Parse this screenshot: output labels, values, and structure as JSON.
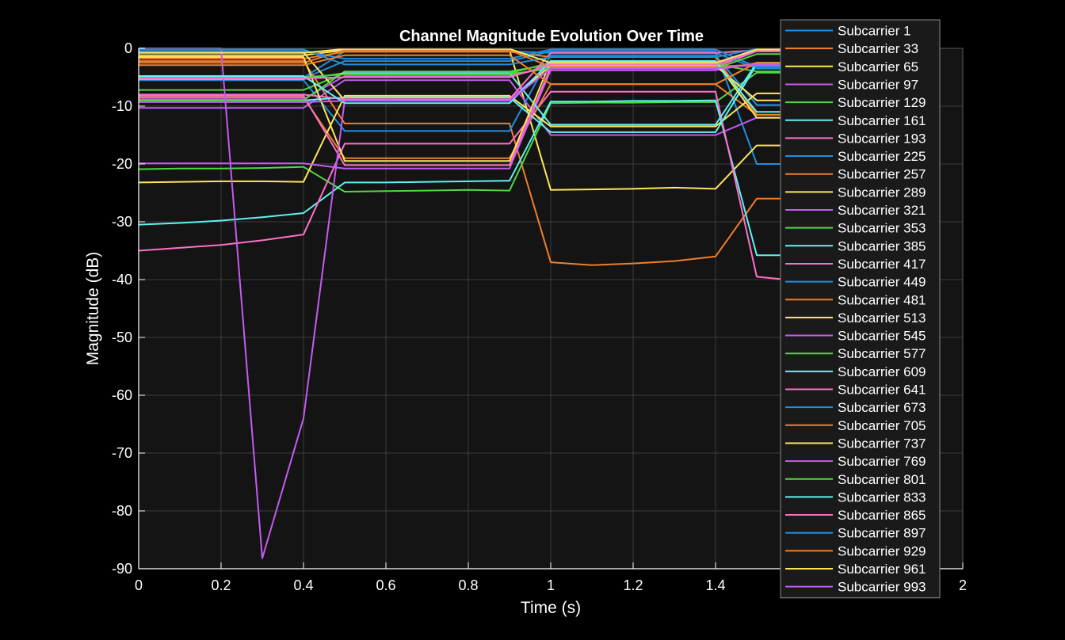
{
  "chart_data": {
    "type": "line",
    "title": "Channel Magnitude Evolution Over Time",
    "xlabel": "Time (s)",
    "ylabel": "Magnitude (dB)",
    "xlim": [
      0,
      2
    ],
    "ylim": [
      -90,
      0
    ],
    "xticks": [
      0,
      0.2,
      0.4,
      0.6,
      0.8,
      1,
      1.2,
      1.4,
      1.6,
      1.8,
      2
    ],
    "xtick_labels": [
      "0",
      "0.2",
      "0.4",
      "0.6",
      "0.8",
      "1",
      "1.2",
      "1.4",
      "",
      "",
      "2"
    ],
    "yticks": [
      0,
      -10,
      -20,
      -30,
      -40,
      -50,
      -60,
      -70,
      -80,
      -90
    ],
    "ytick_labels": [
      "0",
      "-10",
      "-20",
      "-30",
      "-40",
      "-50",
      "-60",
      "-70",
      "-80",
      "-90"
    ],
    "grid": true,
    "legend_position": "top-right",
    "background": "#141414",
    "x": [
      0,
      0.1,
      0.2,
      0.3,
      0.4,
      0.5,
      0.6,
      0.7,
      0.8,
      0.9,
      1.0,
      1.1,
      1.2,
      1.3,
      1.4,
      1.5,
      1.6
    ],
    "series": [
      {
        "name": "Subcarrier 1",
        "color": "#1f8ee0",
        "values": [
          -5.2,
          -5.2,
          -5.2,
          -5.2,
          -5.2,
          -2.2,
          -2.2,
          -2.2,
          -2.2,
          -2.2,
          -0.5,
          -0.5,
          -0.5,
          -0.5,
          -0.5,
          -20,
          -20
        ]
      },
      {
        "name": "Subcarrier 33",
        "color": "#f07f2a",
        "values": [
          -2.2,
          -2.2,
          -2.2,
          -2.2,
          -2.2,
          -13,
          -13,
          -13,
          -13,
          -13,
          -37,
          -37.5,
          -37.2,
          -36.8,
          -36,
          -26,
          -26
        ]
      },
      {
        "name": "Subcarrier 65",
        "color": "#ffe55c",
        "values": [
          -1.2,
          -1.2,
          -1.2,
          -1.2,
          -1.2,
          -0.3,
          -0.3,
          -0.3,
          -0.3,
          -0.3,
          -24.5,
          -24.4,
          -24.3,
          -24.1,
          -24.3,
          -16.8,
          -16.8
        ]
      },
      {
        "name": "Subcarrier 97",
        "color": "#c45cf0",
        "values": [
          -10.3,
          -10.3,
          -10.3,
          -10.3,
          -10.3,
          -5.5,
          -5.5,
          -5.5,
          -5.5,
          -5.5,
          -15,
          -15,
          -15,
          -15,
          -15,
          -12,
          -12
        ]
      },
      {
        "name": "Subcarrier 129",
        "color": "#4ed83f",
        "values": [
          -20.9,
          -20.8,
          -20.8,
          -20.7,
          -20.5,
          -24.8,
          -24.7,
          -24.6,
          -24.5,
          -24.6,
          -9.5,
          -9.4,
          -9.4,
          -9.3,
          -9.3,
          -4.2,
          -4.2
        ]
      },
      {
        "name": "Subcarrier 161",
        "color": "#5ff2f2",
        "values": [
          -30.5,
          -30.2,
          -29.8,
          -29.2,
          -28.5,
          -23.2,
          -23.2,
          -23.1,
          -23.0,
          -22.9,
          -9.2,
          -9.2,
          -9.1,
          -9.1,
          -9.0,
          -35.8,
          -35.8
        ]
      },
      {
        "name": "Subcarrier 193",
        "color": "#ff6fc8",
        "values": [
          -35,
          -34.5,
          -34,
          -33.2,
          -32.2,
          -16.5,
          -16.5,
          -16.5,
          -16.5,
          -16.5,
          -7.5,
          -7.5,
          -7.5,
          -7.5,
          -7.5,
          -39.5,
          -40.2
        ]
      },
      {
        "name": "Subcarrier 225",
        "color": "#1f8ee0",
        "values": [
          -5.5,
          -5.5,
          -5.5,
          -5.5,
          -5.5,
          -14.3,
          -14.3,
          -14.3,
          -14.3,
          -14.3,
          -1.2,
          -1.2,
          -1.2,
          -1.2,
          -1.2,
          -9.8,
          -9.8
        ]
      },
      {
        "name": "Subcarrier 257",
        "color": "#f07f2a",
        "values": [
          -8.5,
          -8.5,
          -8.5,
          -8.5,
          -8.5,
          -19,
          -19,
          -19,
          -19,
          -19,
          -6.2,
          -6.2,
          -6.2,
          -6.2,
          -6.2,
          -11.5,
          -11.5
        ]
      },
      {
        "name": "Subcarrier 289",
        "color": "#ffe55c",
        "values": [
          -23.2,
          -23.1,
          -23.0,
          -23.0,
          -23.1,
          -8.2,
          -8.2,
          -8.2,
          -8.2,
          -8.2,
          -13.5,
          -13.5,
          -13.5,
          -13.5,
          -13.5,
          -7.8,
          -7.8
        ]
      },
      {
        "name": "Subcarrier 321",
        "color": "#c45cf0",
        "values": [
          -19.9,
          -19.9,
          -19.9,
          -19.9,
          -19.9,
          -20.8,
          -20.8,
          -20.8,
          -20.8,
          -20.8,
          -3.8,
          -3.8,
          -3.8,
          -3.8,
          -3.8,
          -2.5,
          -2.5
        ]
      },
      {
        "name": "Subcarrier 353",
        "color": "#4ed83f",
        "values": [
          -7.2,
          -7.2,
          -7.2,
          -7.2,
          -7.2,
          -4.3,
          -4.3,
          -4.3,
          -4.3,
          -4.3,
          -2.5,
          -2.5,
          -2.5,
          -2.5,
          -2.5,
          -0.3,
          -0.3
        ]
      },
      {
        "name": "Subcarrier 385",
        "color": "#5ff2f2",
        "values": [
          -9,
          -9,
          -9,
          -9,
          -9,
          -8.5,
          -8.5,
          -8.5,
          -8.5,
          -8.5,
          -14.5,
          -14.5,
          -14.5,
          -14.5,
          -14.5,
          -2.8,
          -2.8
        ]
      },
      {
        "name": "Subcarrier 417",
        "color": "#ff6fc8",
        "values": [
          -8.2,
          -8.2,
          -8.2,
          -8.2,
          -8.2,
          -20.2,
          -20.2,
          -20.2,
          -20.2,
          -20.2,
          -3.2,
          -3.2,
          -3.2,
          -3.2,
          -3.2,
          -0.5,
          -0.5
        ]
      },
      {
        "name": "Subcarrier 449",
        "color": "#1f8ee0",
        "values": [
          -5.1,
          -5.1,
          -5.1,
          -5.1,
          -5.1,
          -0.5,
          -0.5,
          -0.5,
          -0.5,
          -0.5,
          -0.8,
          -0.8,
          -0.8,
          -0.8,
          -0.8,
          -3.5,
          -3.5
        ]
      },
      {
        "name": "Subcarrier 481",
        "color": "#f07f2a",
        "values": [
          -1.8,
          -1.8,
          -1.8,
          -1.8,
          -1.8,
          -0.6,
          -0.6,
          -0.6,
          -0.6,
          -0.6,
          -1.5,
          -1.5,
          -1.5,
          -1.5,
          -1.5,
          -11.5,
          -11.5
        ]
      },
      {
        "name": "Subcarrier 513",
        "color": "#ffe55c",
        "values": [
          -0.7,
          -0.7,
          -0.7,
          -0.7,
          -0.7,
          -9,
          -9,
          -9,
          -9,
          -9,
          -3,
          -3,
          -3,
          -3,
          -3,
          -9,
          -9
        ]
      },
      {
        "name": "Subcarrier 545",
        "color": "#c45cf0",
        "values": [
          -8.8,
          -8.8,
          -8.8,
          -8.8,
          -8.8,
          -4.8,
          -4.8,
          -4.8,
          -4.8,
          -4.8,
          -3.2,
          -3.2,
          -3.2,
          -3.2,
          -3.2,
          -3,
          -3
        ]
      },
      {
        "name": "Subcarrier 577",
        "color": "#4ed83f",
        "values": [
          -9,
          -9,
          -9,
          -9,
          -9,
          -4,
          -4,
          -4,
          -4,
          -4,
          -2.8,
          -2.8,
          -2.8,
          -2.8,
          -2.8,
          -4,
          -4
        ]
      },
      {
        "name": "Subcarrier 609",
        "color": "#5ff2f2",
        "values": [
          -5.3,
          -5.3,
          -5.3,
          -5.3,
          -5.3,
          -4.3,
          -4.3,
          -4.3,
          -4.3,
          -4.3,
          -13.2,
          -13.2,
          -13.2,
          -13.2,
          -13.2,
          -2.5,
          -2.5
        ]
      },
      {
        "name": "Subcarrier 641",
        "color": "#ff6fc8",
        "values": [
          -8,
          -8,
          -8,
          -8,
          -8,
          -8.8,
          -8.8,
          -8.8,
          -8.8,
          -8.8,
          -0.8,
          -0.8,
          -0.8,
          -0.8,
          -0.8,
          -0.3,
          -0.3
        ]
      },
      {
        "name": "Subcarrier 673",
        "color": "#1f8ee0",
        "values": [
          -0.5,
          -0.5,
          -0.5,
          -0.5,
          -0.5,
          -1.8,
          -1.8,
          -1.8,
          -1.8,
          -1.8,
          -0.2,
          -0.2,
          -0.2,
          -0.2,
          -0.2,
          -3.2,
          -3.2
        ]
      },
      {
        "name": "Subcarrier 705",
        "color": "#f07f2a",
        "values": [
          -2.5,
          -2.5,
          -2.5,
          -2.5,
          -2.5,
          -0.3,
          -0.3,
          -0.3,
          -0.3,
          -0.3,
          -3.2,
          -3.2,
          -3.2,
          -3.2,
          -3.2,
          -2.8,
          -2.8
        ]
      },
      {
        "name": "Subcarrier 737",
        "color": "#ffe55c",
        "values": [
          -1.5,
          -1.5,
          -1.5,
          -1.5,
          -1.5,
          -19.5,
          -19.5,
          -19.5,
          -19.5,
          -19.5,
          -2.2,
          -2.2,
          -2.2,
          -2.2,
          -2.2,
          -12,
          -12
        ]
      },
      {
        "name": "Subcarrier 769",
        "color": "#c45cf0",
        "values": [
          0,
          0,
          0,
          -88.2,
          -64,
          -9,
          -9,
          -9,
          -9,
          -9,
          -2.5,
          -2.5,
          -2.5,
          -2.5,
          -2.5,
          -0.2,
          -0.2
        ]
      },
      {
        "name": "Subcarrier 801",
        "color": "#4ed83f",
        "values": [
          -5,
          -5,
          -5,
          -5,
          -5,
          -4.5,
          -4.5,
          -4.5,
          -4.5,
          -4.5,
          -3.5,
          -3.5,
          -3.5,
          -3.5,
          -3.5,
          -1,
          -1
        ]
      },
      {
        "name": "Subcarrier 833",
        "color": "#5ff2f2",
        "values": [
          -4.8,
          -4.8,
          -4.8,
          -4.8,
          -4.8,
          -9.5,
          -9.5,
          -9.5,
          -9.5,
          -9.5,
          -2.2,
          -2.2,
          -2.2,
          -2.2,
          -2.2,
          -11,
          -11
        ]
      },
      {
        "name": "Subcarrier 865",
        "color": "#ff6fc8",
        "values": [
          -5.2,
          -5.2,
          -5.2,
          -5.2,
          -5.2,
          -5,
          -5,
          -5,
          -5,
          -5,
          -2.8,
          -2.8,
          -2.8,
          -2.8,
          -2.8,
          -0.5,
          -0.5
        ]
      },
      {
        "name": "Subcarrier 897",
        "color": "#1f8ee0",
        "values": [
          -0.2,
          -0.2,
          -0.2,
          -0.2,
          -0.2,
          -2.8,
          -2.8,
          -2.8,
          -2.8,
          -2.8,
          -1.5,
          -1.5,
          -1.5,
          -1.5,
          -1.5,
          -0.1,
          -0.1
        ]
      },
      {
        "name": "Subcarrier 929",
        "color": "#f07f2a",
        "values": [
          -2.9,
          -2.9,
          -2.9,
          -2.9,
          -2.9,
          -1.2,
          -1.2,
          -1.2,
          -1.2,
          -1.2,
          -6.2,
          -6.2,
          -6.2,
          -6.2,
          -6.2,
          -2.5,
          -2.5
        ]
      },
      {
        "name": "Subcarrier 961",
        "color": "#ffe55c",
        "values": [
          -0.8,
          -0.8,
          -0.8,
          -0.8,
          -0.8,
          -0.1,
          -0.1,
          -0.1,
          -0.1,
          -0.1,
          -2.5,
          -2.5,
          -2.5,
          -2.5,
          -2.5,
          -0.2,
          -0.2
        ]
      },
      {
        "name": "Subcarrier 993",
        "color": "#c45cf0",
        "values": [
          -9.3,
          -9.3,
          -9.3,
          -9.3,
          -9.3,
          -9.1,
          -9.1,
          -9.1,
          -9.1,
          -9.1,
          -3.5,
          -3.5,
          -3.5,
          -3.5,
          -3.5,
          -2.8,
          -2.8
        ]
      }
    ]
  }
}
